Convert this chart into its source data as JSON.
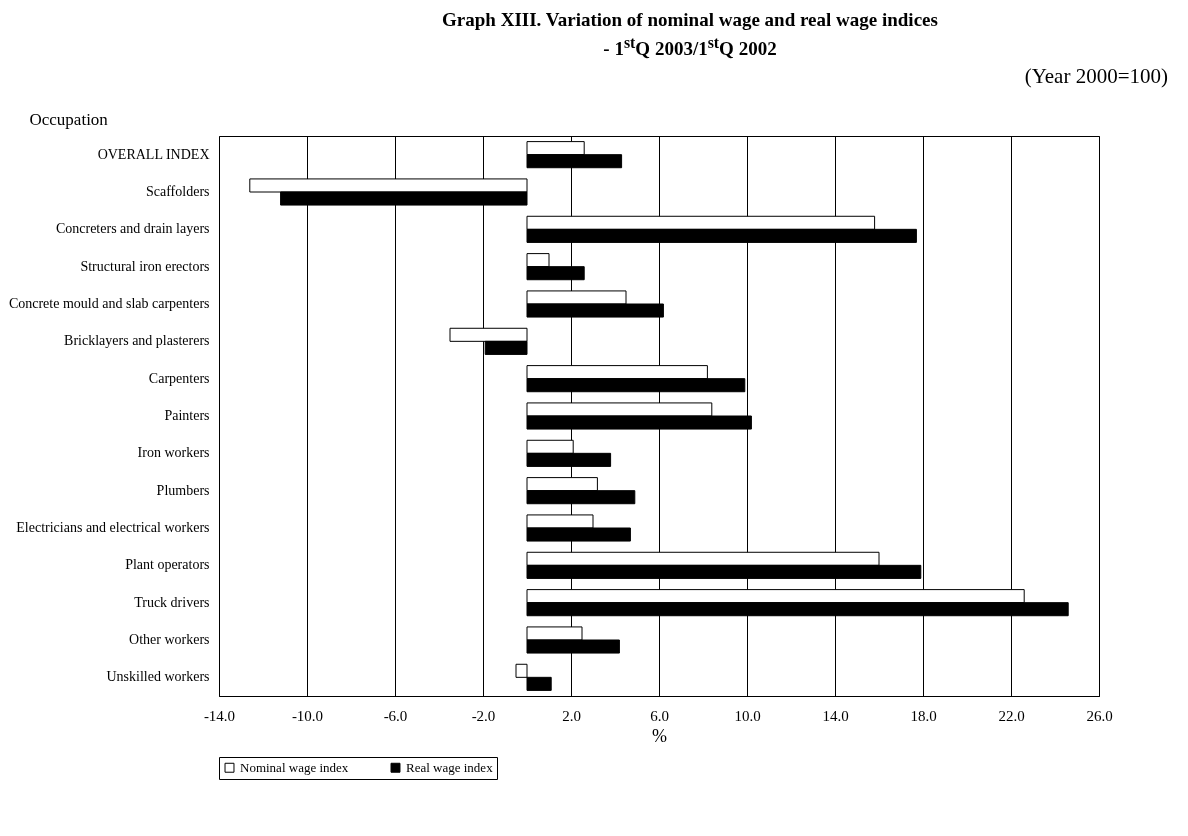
{
  "chart_data": {
    "type": "bar",
    "orientation": "horizontal",
    "title": "Graph XIII. Variation of nominal wage and real wage indices - 1$^{st}$Q 2003/1$^{st}$Q 2002",
    "ylabel": "Occupation",
    "xlabel": "%",
    "annotations": [
      "(Year 2000=100)"
    ],
    "categories": [
      "OVERALL INDEX",
      "Scaffolders",
      "Concreters and drain layers",
      "Structural iron erectors",
      "Concrete mould and slab carpenters",
      "Bricklayers and plasterers",
      "Carpenters",
      "Painters",
      "Iron workers",
      "Plumbers",
      "Electricians and electrical workers",
      "Plant operators",
      "Truck drivers",
      "Other workers",
      "Unskilled workers"
    ],
    "series": [
      {
        "name": "Nominal wage index",
        "color": "#ffffff",
        "values": [
          2.6,
          -12.6,
          15.8,
          1.0,
          4.5,
          -3.5,
          8.2,
          8.4,
          2.1,
          3.2,
          3.0,
          16.0,
          22.6,
          2.5,
          -0.5
        ]
      },
      {
        "name": "Real wage index",
        "color": "#000000",
        "values": [
          4.3,
          -11.2,
          17.7,
          2.6,
          6.2,
          -1.9,
          9.9,
          10.2,
          3.8,
          4.9,
          4.7,
          17.9,
          24.6,
          4.2,
          1.1
        ]
      }
    ],
    "xlim": [
      -14,
      26
    ],
    "xticks": [
      {
        "value": -14,
        "label": "-14.0"
      },
      {
        "value": -10,
        "label": "-10.0"
      },
      {
        "value": -6,
        "label": "-6.0"
      },
      {
        "value": -2,
        "label": "-2.0"
      },
      {
        "value": 2,
        "label": "2.0"
      },
      {
        "value": 6,
        "label": "6.0"
      },
      {
        "value": 10,
        "label": "10.0"
      },
      {
        "value": 14,
        "label": "14.0"
      },
      {
        "value": 18,
        "label": "18.0"
      },
      {
        "value": 22,
        "label": "22.0"
      },
      {
        "value": 26,
        "label": "26.0"
      }
    ],
    "grid": "x",
    "legend": "bottom"
  }
}
